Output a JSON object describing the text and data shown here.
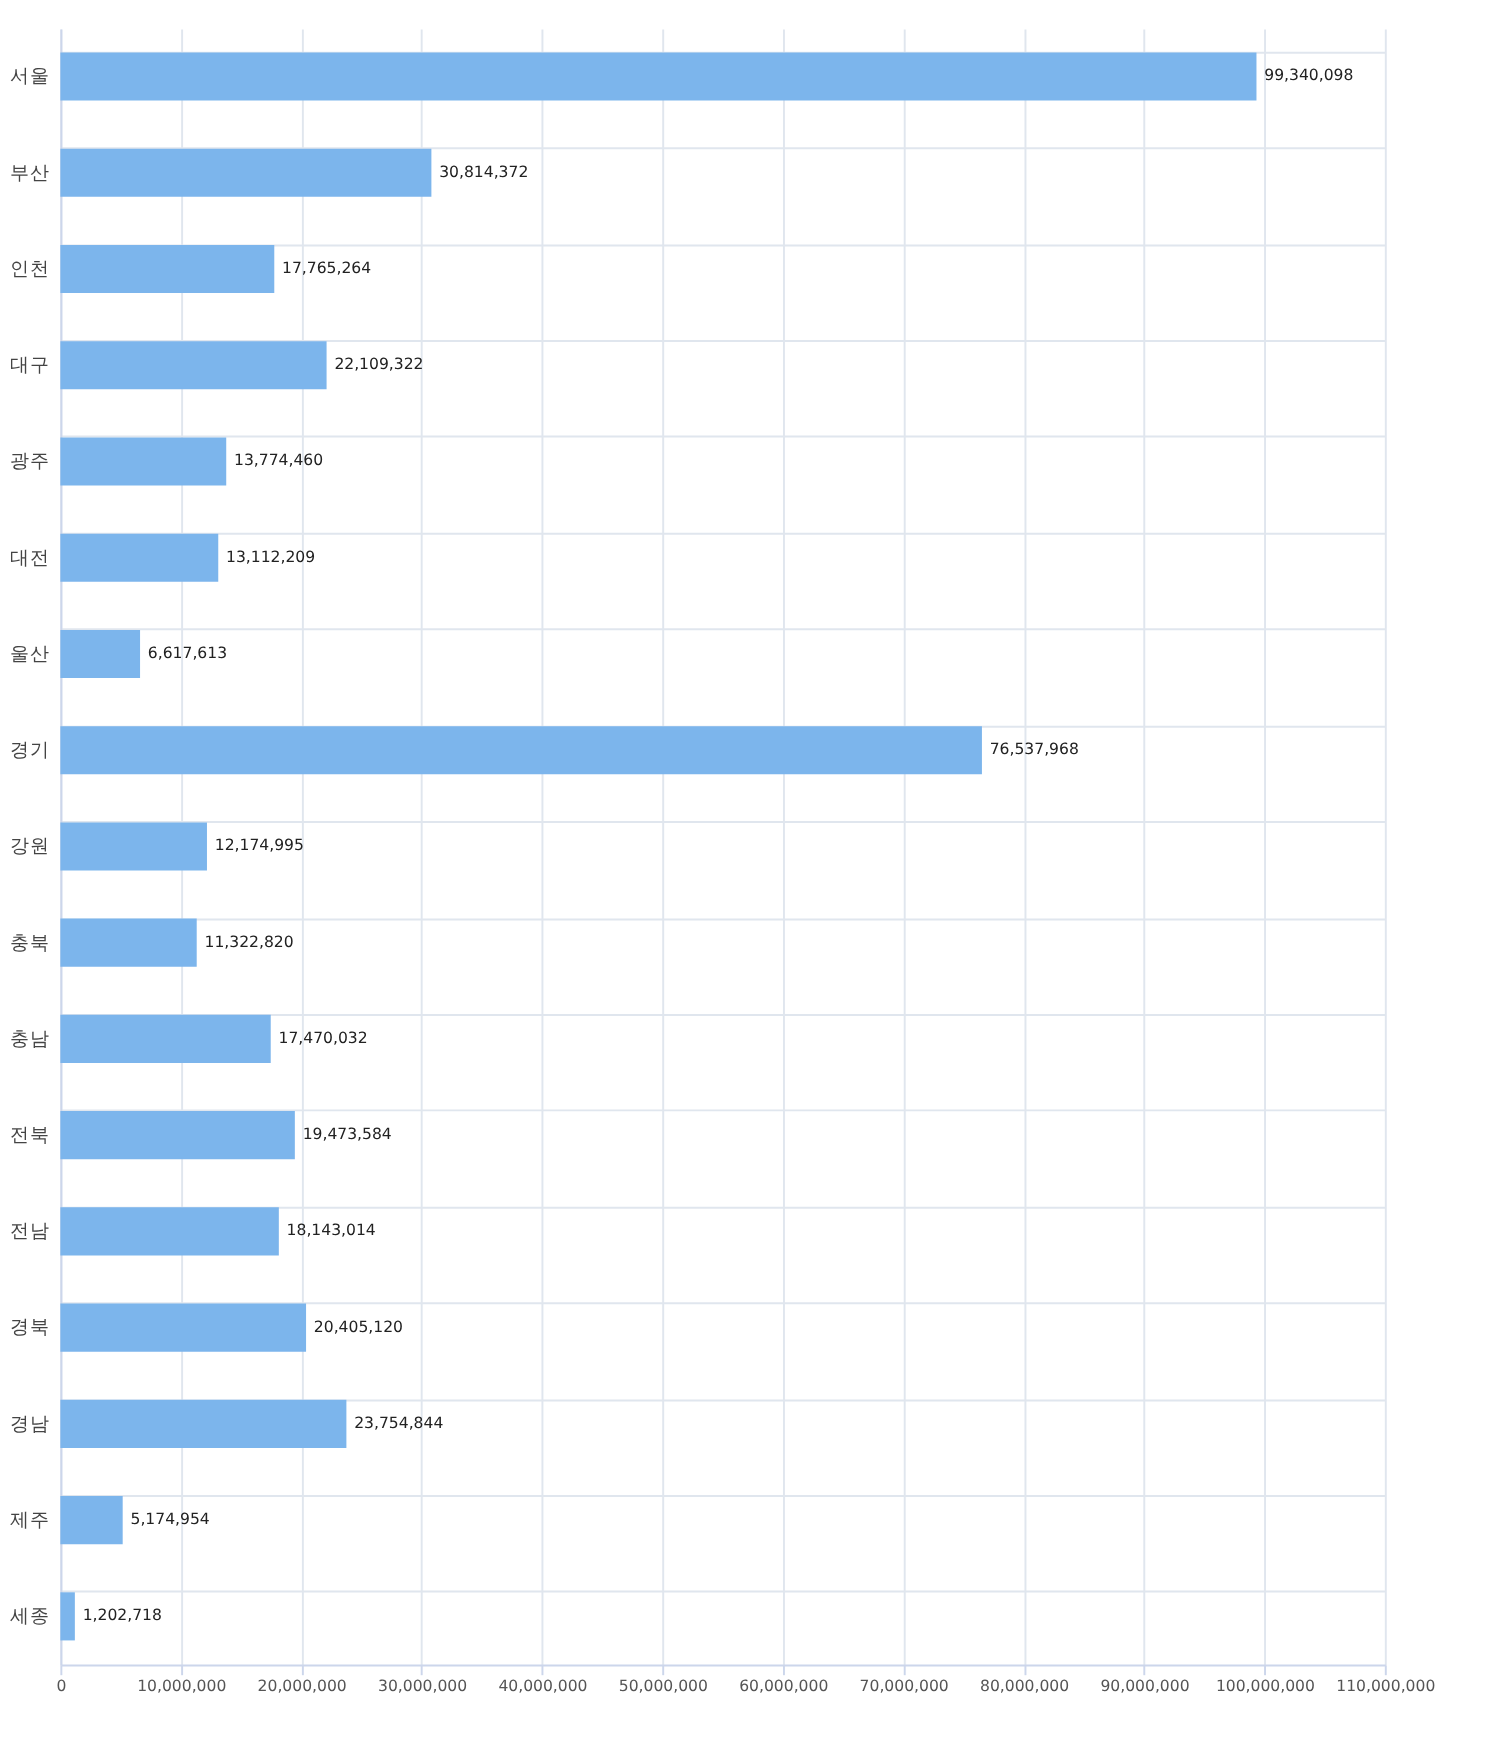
{
  "chart_data": {
    "type": "bar",
    "orientation": "horizontal",
    "grid": true,
    "categories": [
      "서울",
      "부산",
      "인천",
      "대구",
      "광주",
      "대전",
      "울산",
      "경기",
      "강원",
      "충북",
      "충남",
      "전북",
      "전남",
      "경북",
      "경남",
      "제주",
      "세종"
    ],
    "values": [
      99340098,
      30814372,
      17765264,
      22109322,
      13774460,
      13112209,
      6617613,
      76537968,
      12174995,
      11322820,
      17470032,
      19473584,
      18143014,
      20405120,
      23754844,
      5174954,
      1202718
    ],
    "value_labels": [
      "99,340,098",
      "30,814,372",
      "17,765,264",
      "22,109,322",
      "13,774,460",
      "13,112,209",
      "6,617,613",
      "76,537,968",
      "12,174,995",
      "11,322,820",
      "17,470,032",
      "19,473,584",
      "18,143,014",
      "20,405,120",
      "23,754,844",
      "5,174,954",
      "1,202,718"
    ],
    "color": "#7cb5ec",
    "xlim": [
      0,
      110000000
    ],
    "xticks": [
      0,
      {
        "value": 10000000,
        "label": "10,000,000"
      },
      {
        "value": 20000000,
        "label": "20,000,000"
      },
      {
        "value": 30000000,
        "label": "30,000,000"
      },
      {
        "value": 40000000,
        "label": "40,000,000"
      },
      {
        "value": 50000000,
        "label": "50,000,000"
      },
      {
        "value": 60000000,
        "label": "60,000,000"
      },
      {
        "value": 70000000,
        "label": "70,000,000"
      },
      {
        "value": 80000000,
        "label": "80,000,000"
      },
      {
        "value": 90000000,
        "label": "90,000,000"
      },
      {
        "value": 100000000,
        "label": "100,000,000"
      },
      {
        "value": 110000000,
        "label": "110,000,000"
      }
    ]
  }
}
